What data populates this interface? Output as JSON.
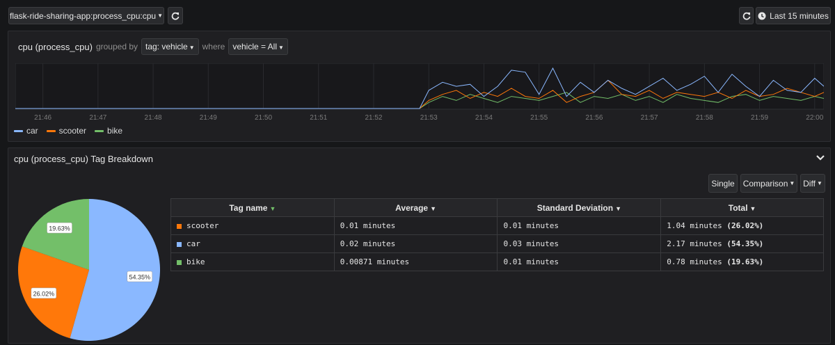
{
  "topbar": {
    "app_selector": "flask-ride-sharing-app:process_cpu:cpu",
    "time_range": "Last 15 minutes"
  },
  "query": {
    "metric": "cpu (process_cpu)",
    "grouped_by_label": "grouped by",
    "group_tag": "tag: vehicle",
    "where_label": "where",
    "filter": "vehicle = All"
  },
  "timeline": {
    "x_ticks": [
      "21:46",
      "21:47",
      "21:48",
      "21:49",
      "21:50",
      "21:51",
      "21:52",
      "21:53",
      "21:54",
      "21:55",
      "21:56",
      "21:57",
      "21:58",
      "21:59",
      "22:00"
    ],
    "legend": [
      {
        "name": "car",
        "color": "#8ab8ff"
      },
      {
        "name": "scooter",
        "color": "#ff780a"
      },
      {
        "name": "bike",
        "color": "#73bf69"
      }
    ]
  },
  "breakdown": {
    "title": "cpu (process_cpu) Tag Breakdown",
    "modes": {
      "single": "Single",
      "comparison": "Comparison",
      "diff": "Diff"
    },
    "columns": {
      "tag": "Tag name",
      "average": "Average",
      "stddev": "Standard Deviation",
      "total": "Total"
    },
    "rows": [
      {
        "tag": "scooter",
        "color": "#ff780a",
        "average": "0.01 minutes",
        "stddev": "0.01 minutes",
        "total": "1.04 minutes",
        "pct": "(26.02%)"
      },
      {
        "tag": "car",
        "color": "#8ab8ff",
        "average": "0.02 minutes",
        "stddev": "0.03 minutes",
        "total": "2.17 minutes",
        "pct": "(54.35%)"
      },
      {
        "tag": "bike",
        "color": "#73bf69",
        "average": "0.00871 minutes",
        "stddev": "0.01 minutes",
        "total": "0.78 minutes",
        "pct": "(19.63%)"
      }
    ]
  },
  "chart_data": [
    {
      "type": "line",
      "x": [
        "21:45:30",
        "21:46",
        "21:47",
        "21:48",
        "21:49",
        "21:50",
        "21:51",
        "21:52",
        "21:52:50",
        "21:53",
        "21:53:15",
        "21:53:30",
        "21:53:45",
        "21:54",
        "21:54:15",
        "21:54:30",
        "21:54:45",
        "21:55",
        "21:55:15",
        "21:55:30",
        "21:55:45",
        "21:56",
        "21:56:15",
        "21:56:30",
        "21:56:45",
        "21:57",
        "21:57:15",
        "21:57:30",
        "21:57:45",
        "21:58",
        "21:58:15",
        "21:58:30",
        "21:58:45",
        "21:59",
        "21:59:15",
        "21:59:30",
        "21:59:45",
        "22:00",
        "22:00:10"
      ],
      "series": [
        {
          "name": "car",
          "color": "#8ab8ff",
          "values": [
            0,
            0,
            0,
            0,
            0,
            0,
            0,
            0,
            0,
            0.45,
            0.65,
            0.55,
            0.6,
            0.3,
            0.55,
            0.95,
            0.9,
            0.35,
            1.0,
            0.3,
            0.65,
            0.4,
            0.7,
            0.5,
            0.35,
            0.55,
            0.75,
            0.45,
            0.6,
            0.8,
            0.4,
            0.85,
            0.55,
            0.3,
            0.7,
            0.45,
            0.4,
            0.75,
            0.55
          ]
        },
        {
          "name": "scooter",
          "color": "#ff780a",
          "values": [
            0,
            0,
            0,
            0,
            0,
            0,
            0,
            0,
            0,
            0.2,
            0.35,
            0.45,
            0.25,
            0.4,
            0.3,
            0.5,
            0.3,
            0.25,
            0.45,
            0.15,
            0.3,
            0.4,
            0.7,
            0.35,
            0.3,
            0.45,
            0.25,
            0.4,
            0.35,
            0.3,
            0.4,
            0.25,
            0.45,
            0.3,
            0.35,
            0.5,
            0.4,
            0.3,
            0.4
          ]
        },
        {
          "name": "bike",
          "color": "#73bf69",
          "values": [
            0,
            0,
            0,
            0,
            0,
            0,
            0,
            0,
            0,
            0.15,
            0.3,
            0.2,
            0.35,
            0.25,
            0.15,
            0.3,
            0.25,
            0.2,
            0.3,
            0.4,
            0.15,
            0.3,
            0.25,
            0.35,
            0.2,
            0.3,
            0.15,
            0.35,
            0.25,
            0.2,
            0.15,
            0.3,
            0.35,
            0.2,
            0.3,
            0.25,
            0.2,
            0.3,
            0.25
          ]
        }
      ]
    },
    {
      "type": "pie",
      "labels": [
        "car",
        "scooter",
        "bike"
      ],
      "values": [
        54.35,
        26.02,
        19.63
      ],
      "data_labels": [
        "54.35%",
        "26.02%",
        "19.63%"
      ],
      "colors": [
        "#8ab8ff",
        "#ff780a",
        "#73bf69"
      ]
    }
  ]
}
